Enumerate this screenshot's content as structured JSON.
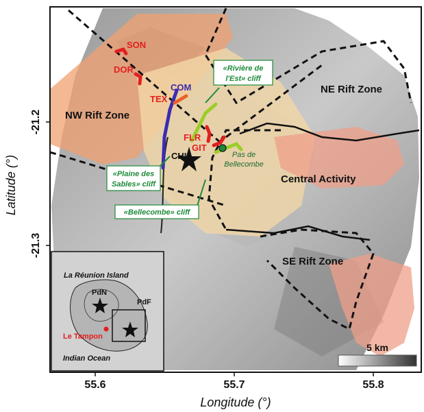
{
  "axes": {
    "xlabel": "Longitude (°)",
    "ylabel": "Latitude (°)",
    "xticks": [
      "55.6",
      "55.7",
      "55.8"
    ],
    "yticks": [
      "-21.2",
      "-21.3"
    ]
  },
  "zones": {
    "nw_rift": "NW Rift Zone",
    "ne_rift": "NE Rift Zone",
    "se_rift": "SE Rift Zone",
    "central": "Central Activity"
  },
  "sites": {
    "son": "SON",
    "dor": "DOR",
    "com": "COM",
    "tex": "TEX",
    "flr": "FLR",
    "git": "GIT",
    "chi": "CHI"
  },
  "callouts": {
    "riviere_line1": "«Rivière de",
    "riviere_line2": "l'Est» cliff",
    "plaine_line1": "«Plaine des",
    "plaine_line2": "Sables» cliff",
    "bellecombe": "«Bellecombe» cliff",
    "pas_line1": "Pas de",
    "pas_line2": "Bellecombe"
  },
  "inset": {
    "title": "La Réunion Island",
    "pdn": "PdN",
    "pdf": "PdF",
    "tampon": "Le Tampon",
    "ocean": "Indian Ocean"
  },
  "scalebar": {
    "label": "5 km"
  },
  "colors": {
    "site_red": "#e41e1e",
    "com_blue": "#3b2db0",
    "cliff_green": "#1e8a3a",
    "cliff_lime": "#9ccd2a",
    "zone_orange": "#f0a070",
    "zone_tan": "#f3d7a6"
  }
}
